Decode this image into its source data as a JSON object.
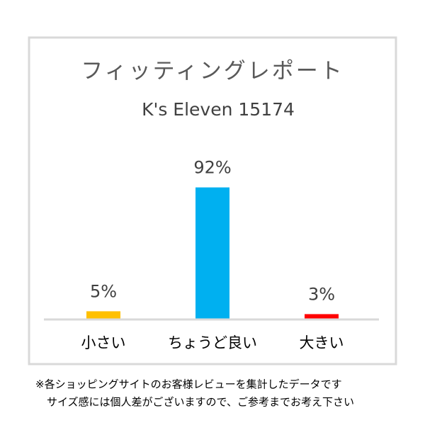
{
  "chart_data": {
    "type": "bar",
    "title": "フィッティングレポート",
    "subtitle": "K's Eleven 15174",
    "categories": [
      "小さい",
      "ちょうど良い",
      "大きい"
    ],
    "values": [
      5,
      92,
      3
    ],
    "value_labels": [
      "5%",
      "92%",
      "3%"
    ],
    "colors": [
      "#ffc000",
      "#00b0f0",
      "#ff0000"
    ],
    "notes": [
      "※各ショッピングサイトのお客様レビューを集計したデータです",
      "サイズ感には個人差がございますので、ご参考までお考え下さい"
    ]
  }
}
